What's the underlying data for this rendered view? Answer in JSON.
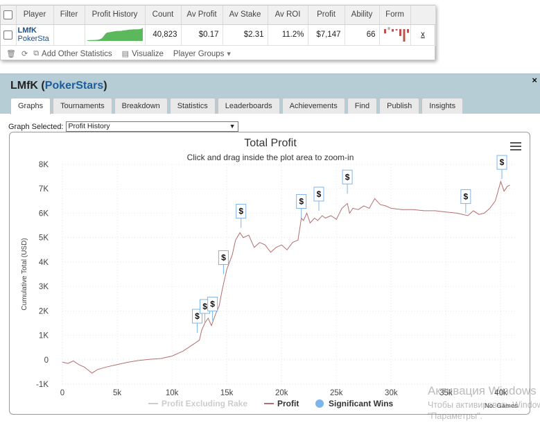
{
  "player_table": {
    "headers": [
      "Player",
      "Filter",
      "Profit History",
      "Count",
      "Av Profit",
      "Av Stake",
      "Av ROI",
      "Profit",
      "Ability",
      "Form"
    ],
    "row": {
      "nick": "LMfK",
      "site": "PokerSta",
      "filter": "",
      "count": "40,823",
      "av_profit": "$0.17",
      "av_stake": "$2.31",
      "av_roi": "11.2%",
      "profit": "$7,147",
      "ability": "66",
      "remove": "x"
    },
    "sparkline": [
      0.05,
      0.05,
      0.06,
      0.06,
      0.07,
      0.07,
      0.08,
      0.1,
      0.14,
      0.2,
      0.34,
      0.5,
      0.6,
      0.62,
      0.64,
      0.66,
      0.68,
      0.7,
      0.72,
      0.72,
      0.72,
      0.73,
      0.75,
      0.76,
      0.78,
      0.8,
      0.82,
      0.82,
      0.83,
      0.84,
      0.84,
      0.84,
      0.85,
      0.86,
      0.95
    ],
    "form_bars": [
      -0.35,
      0.45,
      -0.2,
      -0.1,
      -0.55,
      -1.0,
      -0.3
    ],
    "toolbar": {
      "add_stats": "Add Other Statistics",
      "visualize": "Visualize",
      "player_groups": "Player Groups"
    }
  },
  "panel": {
    "title_nick": "LMfK",
    "title_site": "PokerStars",
    "close": "×",
    "tabs": [
      "Graphs",
      "Tournaments",
      "Breakdown",
      "Statistics",
      "Leaderboards",
      "Achievements",
      "Find",
      "Publish",
      "Insights"
    ],
    "active_tab": "Graphs",
    "graph_selected_label": "Graph Selected:",
    "graph_selected_value": "Profit History"
  },
  "chart_data": {
    "type": "line",
    "title": "Total Profit",
    "subtitle": "Click and drag inside the plot area to zoom-in",
    "xlabel": "No. Games",
    "ylabel": "Cumulative Total (USD)",
    "xlim": [
      0,
      40823
    ],
    "ylim": [
      -1000,
      8000
    ],
    "x_ticks": [
      "0",
      "5k",
      "10k",
      "15k",
      "20k",
      "25k",
      "30k",
      "35k",
      "40k"
    ],
    "x_tick_values": [
      0,
      5000,
      10000,
      15000,
      20000,
      25000,
      30000,
      35000,
      40000
    ],
    "y_ticks": [
      "-1K",
      "0",
      "1K",
      "2K",
      "3K",
      "4K",
      "5K",
      "6K",
      "7K",
      "8K"
    ],
    "y_tick_values": [
      -1000,
      0,
      1000,
      2000,
      3000,
      4000,
      5000,
      6000,
      7000,
      8000
    ],
    "grid": true,
    "legend_placement": "bottom-center",
    "series": [
      {
        "name": "Profit",
        "color": "#b56d6d",
        "x": [
          0,
          500,
          1000,
          1500,
          2000,
          2700,
          3200,
          4000,
          5000,
          6000,
          7000,
          8000,
          9000,
          10000,
          11000,
          11500,
          12000,
          12500,
          12700,
          13000,
          13300,
          13600,
          14000,
          14300,
          14600,
          15000,
          15500,
          15800,
          16200,
          16500,
          17000,
          17500,
          18000,
          18500,
          19000,
          19500,
          20000,
          20500,
          21000,
          21500,
          21800,
          22000,
          22300,
          22600,
          23000,
          23300,
          23700,
          24000,
          24500,
          25000,
          25500,
          26000,
          26200,
          26500,
          27000,
          27500,
          28000,
          28500,
          29000,
          29500,
          30000,
          31000,
          32000,
          33000,
          34000,
          35000,
          36000,
          37000,
          37500,
          38000,
          38500,
          39000,
          39500,
          40000,
          40300,
          40600,
          40823
        ],
        "y": [
          -100,
          -150,
          -50,
          -200,
          -300,
          -550,
          -400,
          -300,
          -200,
          -100,
          -30,
          20,
          50,
          150,
          350,
          500,
          650,
          800,
          1200,
          1500,
          1700,
          1400,
          1900,
          2200,
          2900,
          3700,
          4300,
          4900,
          5200,
          5000,
          5100,
          4600,
          4800,
          4700,
          4400,
          4600,
          4700,
          4500,
          4800,
          4900,
          5800,
          5700,
          6000,
          5600,
          5800,
          5700,
          5900,
          5800,
          5900,
          5750,
          6200,
          6400,
          6000,
          6200,
          6150,
          6300,
          6200,
          6600,
          6350,
          6300,
          6200,
          6150,
          6150,
          6100,
          6100,
          6050,
          6000,
          5900,
          6100,
          5950,
          6000,
          6200,
          6500,
          7300,
          6900,
          7100,
          7147
        ]
      },
      {
        "name": "Profit Excluding Rake",
        "color": "#cccccc",
        "x": [],
        "y": [],
        "disabled": true
      },
      {
        "name": "Significant Wins",
        "color": "#7cb5ec",
        "type": "scatter",
        "x": [
          12300,
          13000,
          13700,
          14700,
          16300,
          21800,
          23400,
          26000,
          36800,
          40100
        ],
        "y": [
          1100,
          1500,
          1600,
          3500,
          5400,
          5800,
          6100,
          6800,
          6000,
          7400
        ],
        "marker_label": "$"
      }
    ]
  },
  "watermark": {
    "line1": "Активация Windows",
    "line2": "Чтобы активировать Windows, перейдите в",
    "line3": "\"Параметры\"."
  }
}
